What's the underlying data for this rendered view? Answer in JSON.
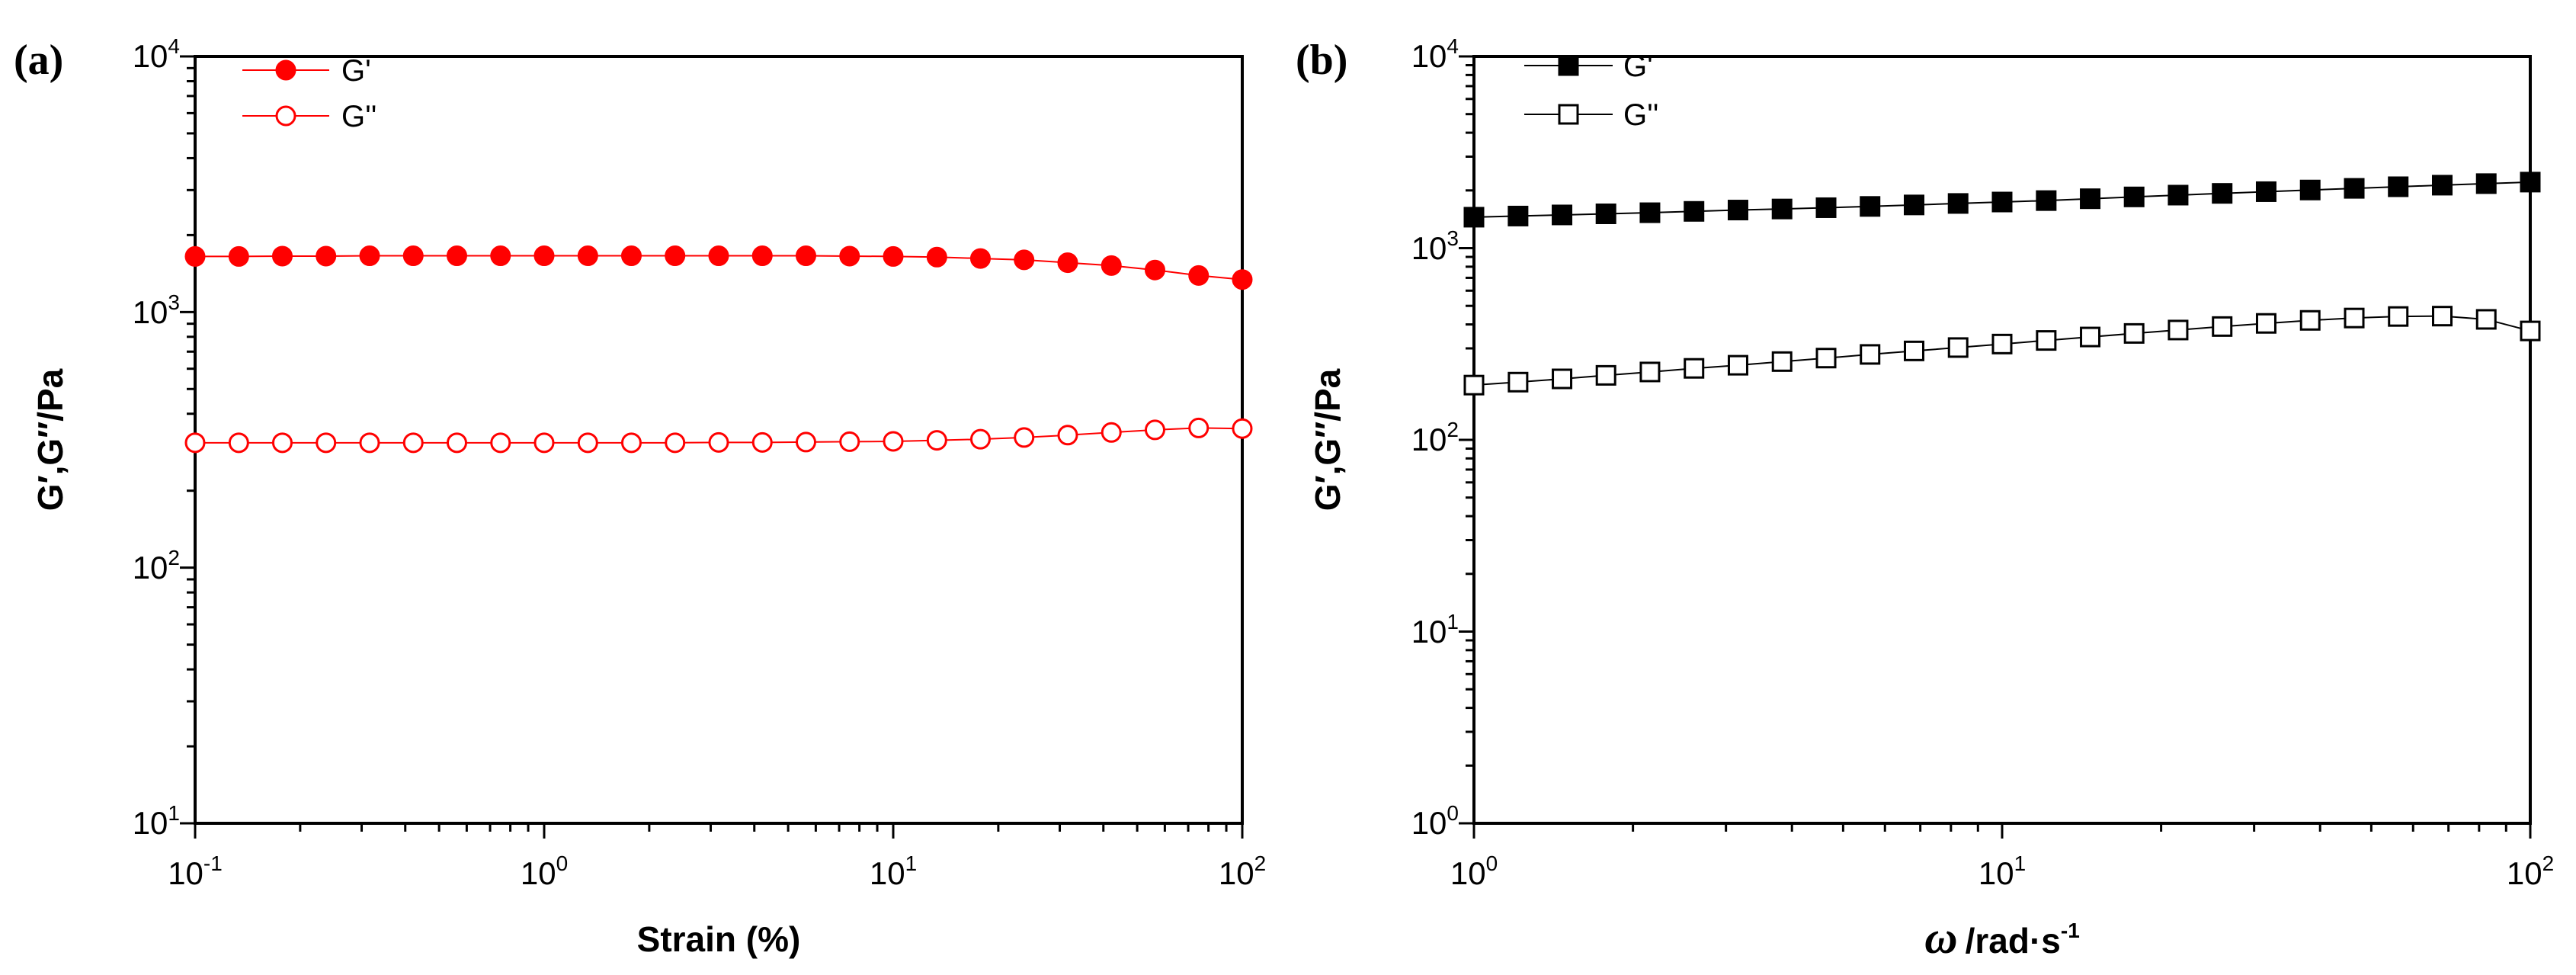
{
  "chart_data": [
    {
      "type": "scatter",
      "panel_label": "(a)",
      "xscale": "log",
      "yscale": "log",
      "xlim": [
        0.1,
        100
      ],
      "ylim": [
        10,
        10000
      ],
      "xlabel": "Strain (%)",
      "ylabel": "G′,G″/Pa",
      "xticks": [
        {
          "base": "10",
          "exp": "-1"
        },
        {
          "base": "10",
          "exp": "0"
        },
        {
          "base": "10",
          "exp": "1"
        },
        {
          "base": "10",
          "exp": "2"
        }
      ],
      "yticks": [
        {
          "base": "10",
          "exp": "1"
        },
        {
          "base": "10",
          "exp": "2"
        },
        {
          "base": "10",
          "exp": "3"
        },
        {
          "base": "10",
          "exp": "4"
        }
      ],
      "color": "#ff0000",
      "legend_position": "top-left",
      "series": [
        {
          "name": "G'",
          "marker": "filled-circle",
          "x": [
            0.1,
            0.1334,
            0.1778,
            0.2371,
            0.3162,
            0.4217,
            0.5623,
            0.7499,
            1.0,
            1.334,
            1.778,
            2.371,
            3.162,
            4.217,
            5.623,
            7.499,
            10.0,
            13.34,
            17.78,
            23.71,
            31.62,
            42.17,
            56.23,
            74.99,
            100.0
          ],
          "y": [
            1650,
            1650,
            1655,
            1655,
            1660,
            1660,
            1660,
            1660,
            1660,
            1660,
            1660,
            1660,
            1660,
            1660,
            1660,
            1655,
            1650,
            1640,
            1620,
            1600,
            1560,
            1520,
            1460,
            1390,
            1340
          ]
        },
        {
          "name": "G''",
          "marker": "open-circle",
          "x": [
            0.1,
            0.1334,
            0.1778,
            0.2371,
            0.3162,
            0.4217,
            0.5623,
            0.7499,
            1.0,
            1.334,
            1.778,
            2.371,
            3.162,
            4.217,
            5.623,
            7.499,
            10.0,
            13.34,
            17.78,
            23.71,
            31.62,
            42.17,
            56.23,
            74.99,
            100.0
          ],
          "y": [
            308,
            308,
            308,
            308,
            308,
            308,
            308,
            308,
            308,
            308,
            308,
            308,
            309,
            309,
            310,
            311,
            312,
            315,
            318,
            323,
            330,
            338,
            346,
            352,
            350
          ]
        }
      ]
    },
    {
      "type": "scatter",
      "panel_label": "(b)",
      "xscale": "log",
      "yscale": "log",
      "xlim": [
        1,
        100
      ],
      "ylim": [
        1,
        10000
      ],
      "xlabel_symbol": "ω",
      "xlabel_text": "/rad·s",
      "xlabel_exp": "-1",
      "ylabel": "G′,G″/Pa",
      "xticks": [
        {
          "base": "10",
          "exp": "0"
        },
        {
          "base": "10",
          "exp": "1"
        },
        {
          "base": "10",
          "exp": "2"
        }
      ],
      "yticks": [
        {
          "base": "10",
          "exp": "0"
        },
        {
          "base": "10",
          "exp": "1"
        },
        {
          "base": "10",
          "exp": "2"
        },
        {
          "base": "10",
          "exp": "3"
        },
        {
          "base": "10",
          "exp": "4"
        }
      ],
      "color": "#000000",
      "legend_position": "top-left",
      "series": [
        {
          "name": "G'",
          "marker": "filled-square",
          "x": [
            1.0,
            1.212,
            1.468,
            1.778,
            2.154,
            2.61,
            3.162,
            3.831,
            4.642,
            5.623,
            6.813,
            8.254,
            10.0,
            12.12,
            14.68,
            17.78,
            21.54,
            26.1,
            31.62,
            38.31,
            46.42,
            56.23,
            68.13,
            82.54,
            100.0
          ],
          "y": [
            1450,
            1470,
            1490,
            1510,
            1530,
            1555,
            1580,
            1600,
            1625,
            1650,
            1680,
            1710,
            1740,
            1770,
            1810,
            1850,
            1890,
            1930,
            1970,
            2010,
            2050,
            2090,
            2130,
            2170,
            2210
          ]
        },
        {
          "name": "G''",
          "marker": "open-square",
          "x": [
            1.0,
            1.212,
            1.468,
            1.778,
            2.154,
            2.61,
            3.162,
            3.831,
            4.642,
            5.623,
            6.813,
            8.254,
            10.0,
            12.12,
            14.68,
            17.78,
            21.54,
            26.1,
            31.62,
            38.31,
            46.42,
            56.23,
            68.13,
            82.54,
            100.0
          ],
          "y": [
            193,
            200,
            208,
            217,
            226,
            236,
            245,
            256,
            267,
            279,
            291,
            303,
            316,
            330,
            344,
            359,
            374,
            390,
            405,
            420,
            432,
            440,
            442,
            425,
            370
          ]
        }
      ]
    }
  ]
}
